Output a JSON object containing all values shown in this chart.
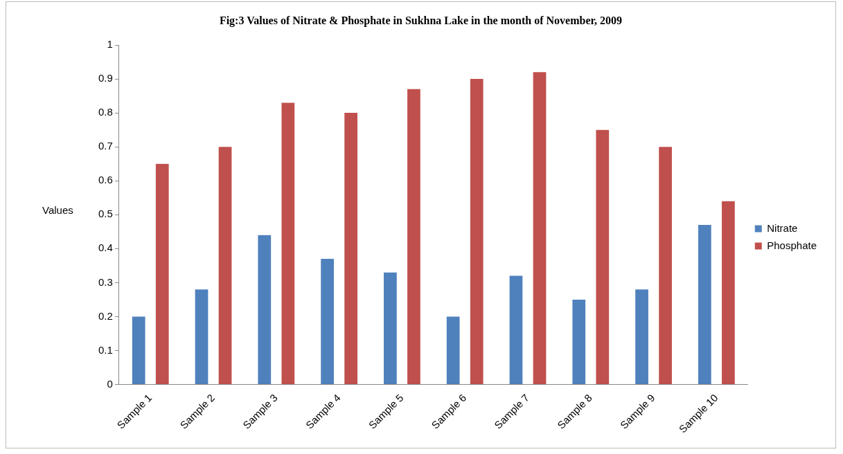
{
  "chart_data": {
    "type": "bar",
    "title": "Fig:3 Values of Nitrate & Phosphate in Sukhna Lake in the month of November, 2009",
    "ylabel": "Values",
    "categories": [
      "Sample 1",
      "Sample 2",
      "Sample 3",
      "Sample 4",
      "Sample 5",
      "Sample 6",
      "Sample 7",
      "Sample 8",
      "Sample 9",
      "Sample 10"
    ],
    "series": [
      {
        "name": "Nitrate",
        "color": "#4f81bd",
        "values": [
          0.2,
          0.28,
          0.44,
          0.37,
          0.33,
          0.2,
          0.32,
          0.25,
          0.28,
          0.47
        ]
      },
      {
        "name": "Phosphate",
        "color": "#c0504d",
        "values": [
          0.65,
          0.7,
          0.83,
          0.8,
          0.87,
          0.9,
          0.92,
          0.75,
          0.7,
          0.54
        ]
      }
    ],
    "ylim": [
      0,
      1
    ],
    "yticks": [
      0,
      0.1,
      0.2,
      0.3,
      0.4,
      0.5,
      0.6,
      0.7,
      0.8,
      0.9,
      1
    ],
    "grid": false,
    "legend": "right"
  }
}
